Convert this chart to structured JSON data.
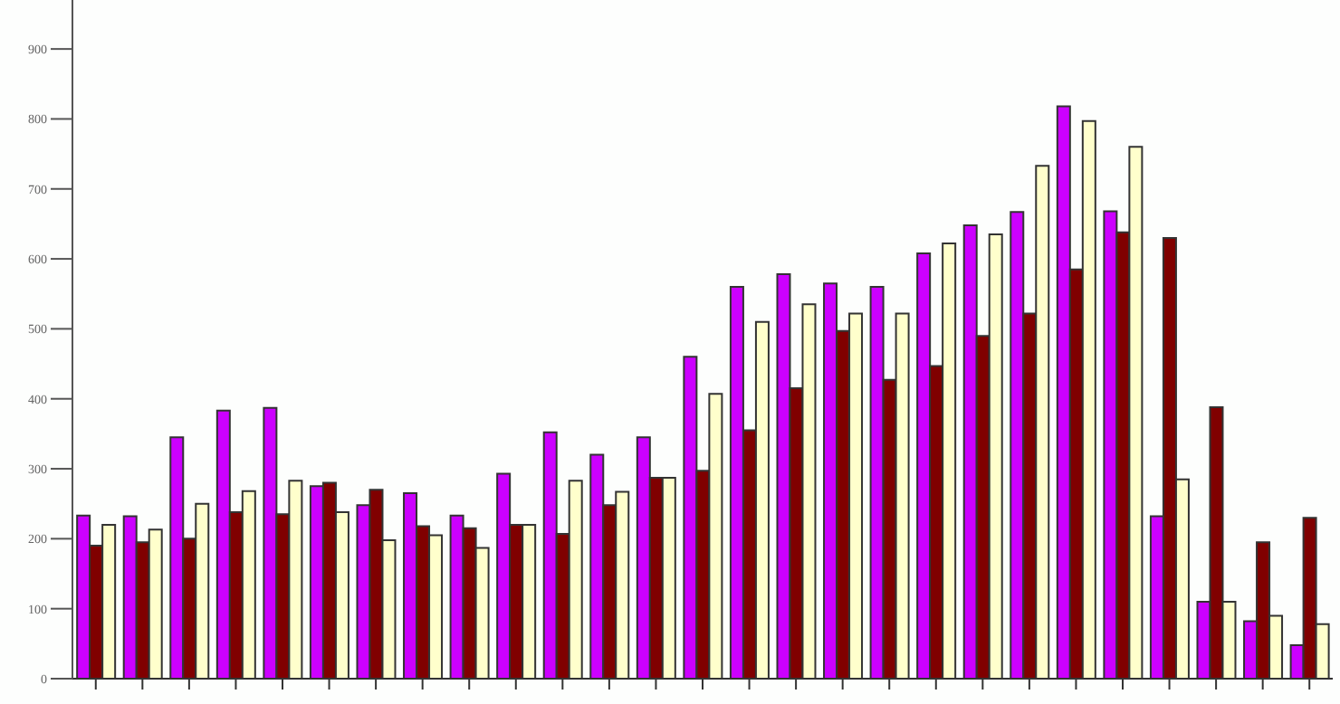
{
  "chart_data": {
    "type": "bar",
    "categories": [
      null,
      null,
      null,
      null,
      null,
      null,
      null,
      null,
      null,
      null,
      null,
      null,
      null,
      null,
      null,
      null,
      null,
      null,
      null,
      null,
      null,
      null,
      null,
      null,
      null,
      null,
      null
    ],
    "series": [
      {
        "color": "#cc00ff",
        "values": [
          233,
          232,
          345,
          383,
          387,
          275,
          248,
          265,
          233,
          293,
          352,
          320,
          345,
          460,
          560,
          578,
          565,
          560,
          608,
          648,
          667,
          818,
          668,
          232,
          110,
          82,
          48
        ]
      },
      {
        "color": "#800000",
        "values": [
          190,
          195,
          200,
          238,
          235,
          280,
          270,
          218,
          215,
          220,
          207,
          248,
          287,
          297,
          355,
          415,
          497,
          427,
          447,
          490,
          522,
          585,
          638,
          630,
          388,
          195,
          230
        ]
      },
      {
        "color": "#ffffcc",
        "values": [
          220,
          213,
          250,
          268,
          283,
          238,
          198,
          205,
          187,
          220,
          283,
          267,
          287,
          407,
          510,
          535,
          522,
          522,
          622,
          635,
          733,
          797,
          760,
          285,
          110,
          90,
          78
        ]
      }
    ],
    "ylim": [
      0,
      970
    ],
    "yticks": [
      0,
      100,
      200,
      300,
      400,
      500,
      600,
      700,
      800,
      900
    ],
    "tick_labels": "y"
  }
}
